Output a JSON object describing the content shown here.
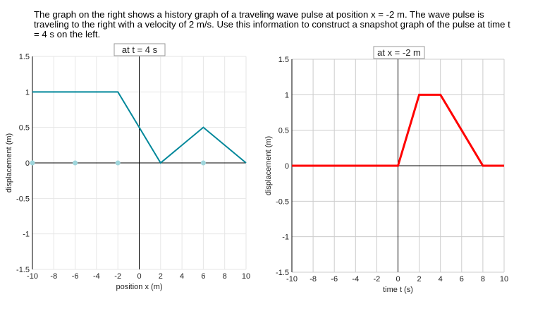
{
  "question": "The graph on the right shows a history graph of a traveling wave pulse at position x = -2 m. The wave pulse is traveling to the right with a velocity of 2 m/s. Use this information to construct a snapshot graph of the pulse at time t = 4 s on the left.",
  "chart_data": [
    {
      "type": "line",
      "title": "at t = 4 s",
      "xlabel": "position x (m)",
      "ylabel": "displacement (m)",
      "xlim": [
        -10,
        10
      ],
      "ylim": [
        -1.5,
        1.5
      ],
      "xticks": [
        -10,
        -8,
        -6,
        -4,
        -2,
        0,
        2,
        4,
        6,
        8,
        10
      ],
      "yticks": [
        -1.5,
        -1,
        -0.5,
        0,
        0.5,
        1,
        1.5
      ],
      "grid": true,
      "color": "#00879a",
      "x": [
        -10,
        -6,
        -2,
        2,
        6,
        10
      ],
      "y": [
        1,
        1,
        1,
        0,
        0.5,
        0
      ],
      "unplaced_points_x": [
        -10,
        -6,
        -2,
        6
      ]
    },
    {
      "type": "line",
      "title": "at x = -2 m",
      "xlabel": "time t (s)",
      "ylabel": "displacement (m)",
      "xlim": [
        -10,
        10
      ],
      "ylim": [
        -1.5,
        1.5
      ],
      "xticks": [
        -10,
        -8,
        -6,
        -4,
        -2,
        0,
        2,
        4,
        6,
        8,
        10
      ],
      "yticks": [
        -1.5,
        -1,
        -0.5,
        0,
        0.5,
        1,
        1.5
      ],
      "grid": true,
      "color": "#ff0000",
      "x": [
        -10,
        0,
        2,
        4,
        8,
        10
      ],
      "y": [
        0,
        0,
        1,
        1,
        0,
        0
      ]
    }
  ]
}
